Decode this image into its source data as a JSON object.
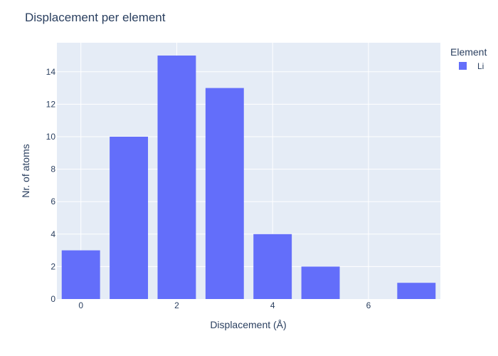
{
  "chart_data": {
    "type": "bar",
    "title": "Displacement per element",
    "xlabel": "Displacement (Å)",
    "ylabel": "Nr. of atoms",
    "x": [
      0,
      1,
      2,
      3,
      4,
      5,
      6,
      7
    ],
    "series": [
      {
        "name": "Li",
        "values": [
          3,
          10,
          15,
          13,
          4,
          2,
          0,
          1
        ],
        "color": "#636efa"
      }
    ],
    "xlim": [
      -0.5,
      7.5
    ],
    "ylim": [
      0,
      15.79
    ],
    "xticks": [
      0,
      2,
      4,
      6
    ],
    "yticks": [
      0,
      2,
      4,
      6,
      8,
      10,
      12,
      14
    ],
    "legend_title": "Element",
    "legend_position": "top-right",
    "grid": true,
    "plot_background": "#e5ecf6",
    "grid_color": "#ffffff"
  }
}
